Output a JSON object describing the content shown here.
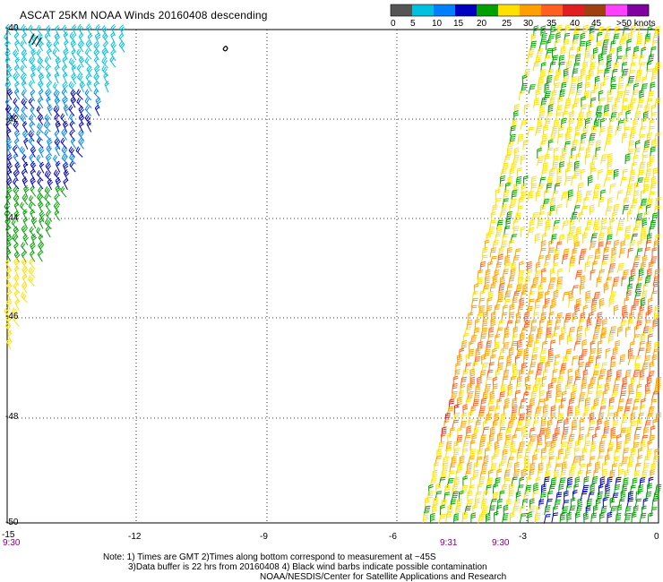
{
  "title": "ASCAT 25KM NOAA Winds 20160408 descending",
  "legend": {
    "labels": [
      "0",
      "5",
      "10",
      "15",
      "20",
      "25",
      "30",
      "35",
      "40",
      "45",
      ">50 knots"
    ],
    "colors": [
      "#555555",
      "#00c0e0",
      "#0080ff",
      "#0000c0",
      "#00a000",
      "#ffe000",
      "#ffa000",
      "#ff6020",
      "#e02020",
      "#a04010",
      "#ff40ff",
      "#8000a0"
    ]
  },
  "lat_labels": [
    "-40",
    "-42",
    "-44",
    "-46",
    "-48",
    "-50"
  ],
  "lon_labels": [
    "-15",
    "-12",
    "-9",
    "-6",
    "-3",
    "0"
  ],
  "times": {
    "left": "9:30",
    "mid1": "9:31",
    "mid2": "9:30"
  },
  "notes": {
    "line1": "Note: 1) Times are GMT 2)Times along bottom correspond to measurement at ~45S",
    "line2": "3)Data buffer is 22 hrs from 20160408 4) Black wind barbs indicate possible contamination",
    "line3": "NOAA/NESDIS/Center for Satellite Applications and Research"
  }
}
